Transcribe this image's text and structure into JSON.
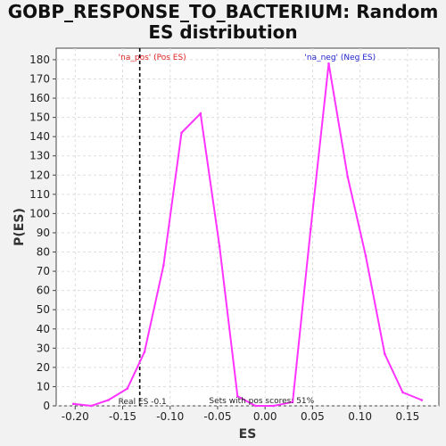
{
  "chart_data": {
    "type": "line",
    "title_lines": [
      "GOBP_RESPONSE_TO_BACTERIUM: Random",
      "ES distribution"
    ],
    "xlabel": "ES",
    "ylabel": "P(ES)",
    "xlim": [
      -0.22,
      0.183
    ],
    "ylim": [
      0,
      186
    ],
    "xticks": [
      -0.2,
      -0.15,
      -0.1,
      -0.05,
      0.0,
      0.05,
      0.1,
      0.15
    ],
    "xtick_labels": [
      "-0.20",
      "-0.15",
      "-0.10",
      "-0.05",
      "0.00",
      "0.05",
      "0.10",
      "0.15"
    ],
    "yticks": [
      0,
      10,
      20,
      30,
      40,
      50,
      60,
      70,
      80,
      90,
      100,
      110,
      120,
      130,
      140,
      150,
      160,
      170,
      180
    ],
    "grid": true,
    "line_color": "#ff33ff",
    "series": [
      {
        "x": [
          -0.202,
          -0.183,
          -0.165,
          -0.145,
          -0.127,
          -0.107,
          -0.088,
          -0.068,
          -0.048,
          -0.029,
          -0.01,
          0.009,
          0.029,
          0.048,
          0.067,
          0.087,
          0.106,
          0.126,
          0.145,
          0.165
        ],
        "y": [
          1,
          0,
          3,
          9,
          28,
          73,
          142,
          152,
          83,
          5,
          0,
          0,
          2,
          92,
          178,
          119,
          78,
          27,
          7,
          3
        ]
      }
    ],
    "real_es": {
      "x": -0.132,
      "label": "Real ES -0.1"
    },
    "annotations": {
      "pos": {
        "text": "'na_pos' (Pos ES)",
        "color": "#dd2222"
      },
      "neg": {
        "text": "'na_neg' (Neg ES)",
        "color": "#2222cc"
      },
      "sets": {
        "text": "Sets with pos scores: 51%",
        "color": "#222222"
      }
    }
  }
}
